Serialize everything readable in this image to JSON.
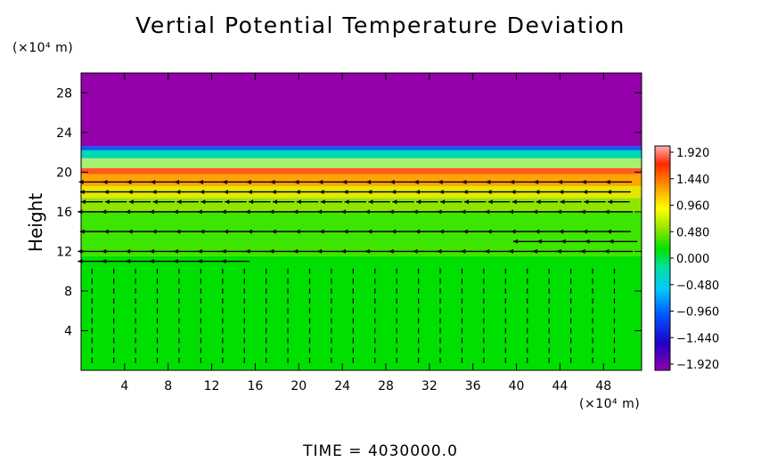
{
  "chart_data": {
    "type": "heatmap",
    "title": "Vertial Potential Temperature Deviation",
    "ylabel": "Height",
    "x_unit_label": "(×10⁴ m)",
    "y_unit_label": "(×10⁴ m)",
    "xlim": [
      0,
      51.5
    ],
    "ylim": [
      0,
      30
    ],
    "x_ticks": [
      4,
      8,
      12,
      16,
      20,
      24,
      28,
      32,
      36,
      40,
      44,
      48
    ],
    "y_ticks": [
      4,
      8,
      12,
      16,
      20,
      24,
      28
    ],
    "colorbar": {
      "ticks": [
        "1.920",
        "1.440",
        "0.960",
        "0.480",
        "0.000",
        "−0.480",
        "−0.960",
        "−1.440",
        "−1.920"
      ],
      "range": [
        -1.92,
        1.92
      ]
    },
    "bands": [
      {
        "from": 0,
        "to": 11.5,
        "color": "#00e000"
      },
      {
        "from": 11.5,
        "to": 16.0,
        "color": "#3ce600"
      },
      {
        "from": 16.0,
        "to": 17.4,
        "color": "#8ee600"
      },
      {
        "from": 17.4,
        "to": 18.6,
        "color": "#e6e600"
      },
      {
        "from": 18.6,
        "to": 19.8,
        "color": "#ffa500"
      },
      {
        "from": 19.8,
        "to": 20.4,
        "color": "#ff5a1e"
      },
      {
        "from": 20.4,
        "to": 21.4,
        "color": "#a8f070"
      },
      {
        "from": 21.4,
        "to": 22.2,
        "color": "#00d8b0"
      },
      {
        "from": 22.2,
        "to": 22.6,
        "color": "#0060ff"
      },
      {
        "from": 22.6,
        "to": 30,
        "color": "#9400aa"
      }
    ],
    "vector_rows": [
      {
        "y": 11,
        "x_from": 0,
        "x_to": 16,
        "length": 2.6
      },
      {
        "y": 12,
        "x_from": 0,
        "x_to": 50,
        "length": 2.6
      },
      {
        "y": 13,
        "x_from": 40,
        "x_to": 50,
        "length": 2.6
      },
      {
        "y": 14,
        "x_from": 0,
        "x_to": 50,
        "length": 2.2
      },
      {
        "y": 16,
        "x_from": 0,
        "x_to": 50,
        "length": 2.6
      },
      {
        "y": 17,
        "x_from": 0,
        "x_to": 50,
        "length": 2.0
      },
      {
        "y": 18,
        "x_from": 0,
        "x_to": 50,
        "length": 2.2
      },
      {
        "y": 19,
        "x_from": 0,
        "x_to": 50,
        "length": 2.4
      }
    ]
  },
  "time_label": "TIME  =  4030000.0"
}
